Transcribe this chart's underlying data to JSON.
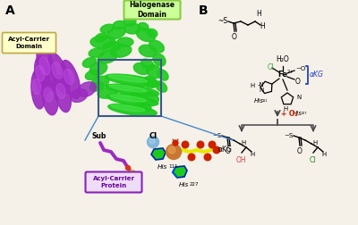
{
  "panel_A_label": "A",
  "panel_B_label": "B",
  "background_color": "#f5f0e8",
  "halogenase_box_color": "#ccff99",
  "halogenase_text": "Halogenase\nDomain",
  "acyl_carrier_domain_box_color": "#ffffcc",
  "acyl_carrier_domain_text": "Acyl-Carrier\nDomain",
  "acyl_carrier_protein_box_color": "#e8d8ff",
  "acyl_carrier_protein_text": "Acyl-Carrier\nProtein",
  "sub_label": "Sub",
  "his111_label": "His",
  "his111_sub": "111",
  "his227_label": "His",
  "his227_sub": "227",
  "cl_label": "Cl",
  "akg_label": "αKG",
  "plus_o2_label": "+ O₂",
  "oh_label": "OH",
  "h2o_label": "H₂O",
  "green_protein_color": "#1ec91e",
  "purple_protein_color": "#9b2bbf",
  "cl_sphere_color": "#7fb8d8",
  "fe_sphere_color": "#c87832",
  "akg_color": "#e8e800",
  "red_color": "#cc2200",
  "blue_color": "#2244bb",
  "gray_line_color": "#555555",
  "red_text_color": "#cc2200",
  "blue_bracket_color": "#2244bb",
  "green_cl_color": "#33aa33",
  "dark_blue_box": "#334466"
}
